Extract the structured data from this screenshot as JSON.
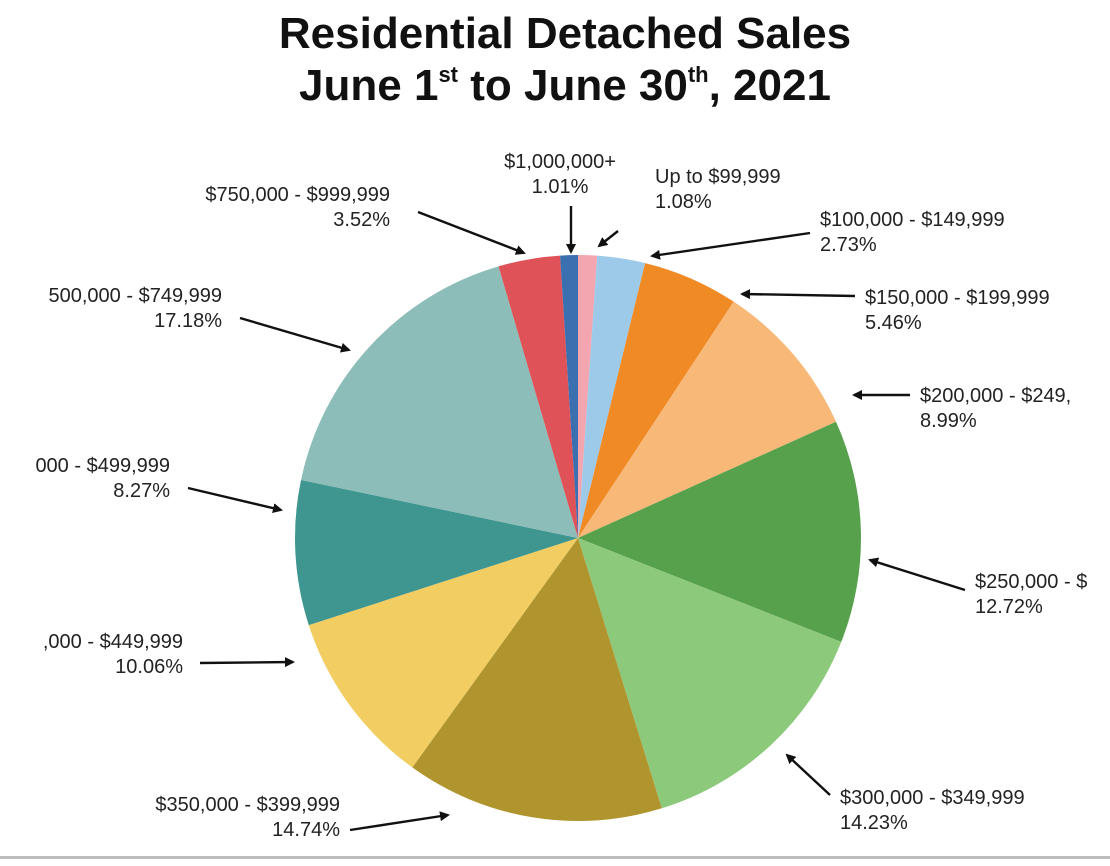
{
  "title": {
    "line1": "Residential Detached Sales",
    "line2_a": "June 1",
    "line2_sup1": "st",
    "line2_b": " to June 30",
    "line2_sup2": "th",
    "line2_c": ", 2021"
  },
  "chart_data": {
    "type": "pie",
    "title": "Residential Detached Sales June 1st to June 30th, 2021",
    "unit": "%",
    "start_angle_deg": 0,
    "direction": "clockwise",
    "slices": [
      {
        "label": "Up to $99,999",
        "value": 1.08,
        "pct_text": "1.08%",
        "color": "#f4a6b0"
      },
      {
        "label": "$100,000 - $149,999",
        "value": 2.73,
        "pct_text": "2.73%",
        "color": "#9ecae9"
      },
      {
        "label": "$150,000 - $199,999",
        "value": 5.46,
        "pct_text": "5.46%",
        "color": "#f08a24"
      },
      {
        "label": "$200,000 - $249,",
        "value": 8.99,
        "pct_text": "8.99%",
        "color": "#f8b878"
      },
      {
        "label": "$250,000 - $",
        "value": 12.72,
        "pct_text": "12.72%",
        "color": "#57a04c"
      },
      {
        "label": "$300,000 - $349,999",
        "value": 14.23,
        "pct_text": "14.23%",
        "color": "#8cc97a"
      },
      {
        "label": "$350,000 - $399,999",
        "value": 14.74,
        "pct_text": "14.74%",
        "color": "#b0952e"
      },
      {
        "label": ",000 - $449,999",
        "value": 10.06,
        "pct_text": "10.06%",
        "color": "#f1cd62"
      },
      {
        "label": "000 - $499,999",
        "value": 8.27,
        "pct_text": "8.27%",
        "color": "#3f9690"
      },
      {
        "label": "500,000 - $749,999",
        "value": 17.18,
        "pct_text": "17.18%",
        "color": "#8dbdb8"
      },
      {
        "label": "$750,000 - $999,999",
        "value": 3.52,
        "pct_text": "3.52%",
        "color": "#de5258"
      },
      {
        "label": "$1,000,000+",
        "value": 1.01,
        "pct_text": "1.01%",
        "color": "#3a6fb0"
      }
    ]
  }
}
